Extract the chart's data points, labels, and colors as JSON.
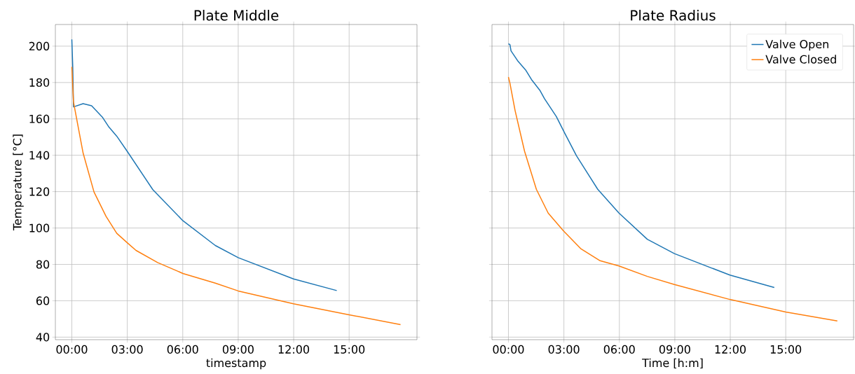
{
  "chart_data": [
    {
      "type": "line",
      "title": "Plate Middle",
      "xlabel": "timestamp",
      "ylabel": "Temperature [°C]",
      "xlim": [
        -0.89,
        18.67
      ],
      "ylim": [
        38.6,
        211.9
      ],
      "grid": true,
      "xticks": [
        {
          "value": 0,
          "label": "00:00"
        },
        {
          "value": 3,
          "label": "03:00"
        },
        {
          "value": 6,
          "label": "06:00"
        },
        {
          "value": 9,
          "label": "09:00"
        },
        {
          "value": 12,
          "label": "12:00"
        },
        {
          "value": 15,
          "label": "15:00"
        }
      ],
      "yticks": [
        40,
        60,
        80,
        100,
        120,
        140,
        160,
        180,
        200
      ],
      "series": [
        {
          "color": "#1f77b4",
          "x": [
            0,
            0.05,
            0.09,
            0.61,
            1.07,
            1.65,
            1.98,
            2.43,
            3.02,
            4.38,
            6.01,
            7.76,
            9,
            11.99,
            14.33
          ],
          "values": [
            203.7,
            188.6,
            166.6,
            168.4,
            167.2,
            161,
            155.9,
            150.5,
            141.8,
            121.1,
            104,
            90.4,
            83.7,
            72,
            65.6
          ]
        },
        {
          "color": "#ff7f0e",
          "x": [
            0,
            0.09,
            0.61,
            1.2,
            1.85,
            2.43,
            3.02,
            3.47,
            4.64,
            6.01,
            7.76,
            9,
            11.99,
            15,
            17.78
          ],
          "values": [
            188.6,
            169.3,
            141.2,
            119.8,
            106.4,
            97.1,
            91.7,
            87.7,
            81,
            75,
            69.7,
            65.4,
            58.3,
            52.3,
            46.9
          ]
        }
      ]
    },
    {
      "type": "line",
      "title": "Plate Radius",
      "xlabel": "Time [h:m]",
      "xlim": [
        -0.89,
        18.67
      ],
      "ylim": [
        38.6,
        211.9
      ],
      "grid": true,
      "legend": "top right",
      "tick_labels": "x",
      "xticks": [
        {
          "value": 0,
          "label": "00:00"
        },
        {
          "value": 3,
          "label": "03:00"
        },
        {
          "value": 6,
          "label": "06:00"
        },
        {
          "value": 9,
          "label": "09:00"
        },
        {
          "value": 12,
          "label": "12:00"
        },
        {
          "value": 15,
          "label": "15:00"
        }
      ],
      "yticks": [
        40,
        60,
        80,
        100,
        120,
        140,
        160,
        180,
        200
      ],
      "series": [
        {
          "name": "Valve Open",
          "color": "#1f77b4",
          "x": [
            0,
            0.08,
            0.14,
            0.49,
            0.93,
            1.25,
            1.7,
            1.95,
            2.59,
            3.01,
            3.68,
            4.83,
            5.98,
            7.51,
            8.98,
            11.98,
            14.38
          ],
          "values": [
            201.3,
            200.9,
            197.4,
            192.1,
            186.9,
            181.6,
            175.7,
            171.1,
            161.3,
            152.8,
            139.7,
            121.3,
            108.2,
            93.8,
            85.9,
            74.1,
            67.3
          ]
        },
        {
          "name": "Valve Closed",
          "color": "#ff7f0e",
          "x": [
            0,
            0.08,
            0.36,
            0.87,
            1.51,
            2.15,
            2.98,
            3.93,
            4.96,
            5.98,
            7.51,
            8.98,
            11.98,
            15,
            17.79
          ],
          "values": [
            183,
            179.7,
            164.6,
            142.3,
            121.3,
            108.2,
            98.4,
            88.5,
            82,
            79.1,
            73.4,
            68.9,
            60.7,
            53.8,
            48.9
          ]
        }
      ]
    }
  ]
}
